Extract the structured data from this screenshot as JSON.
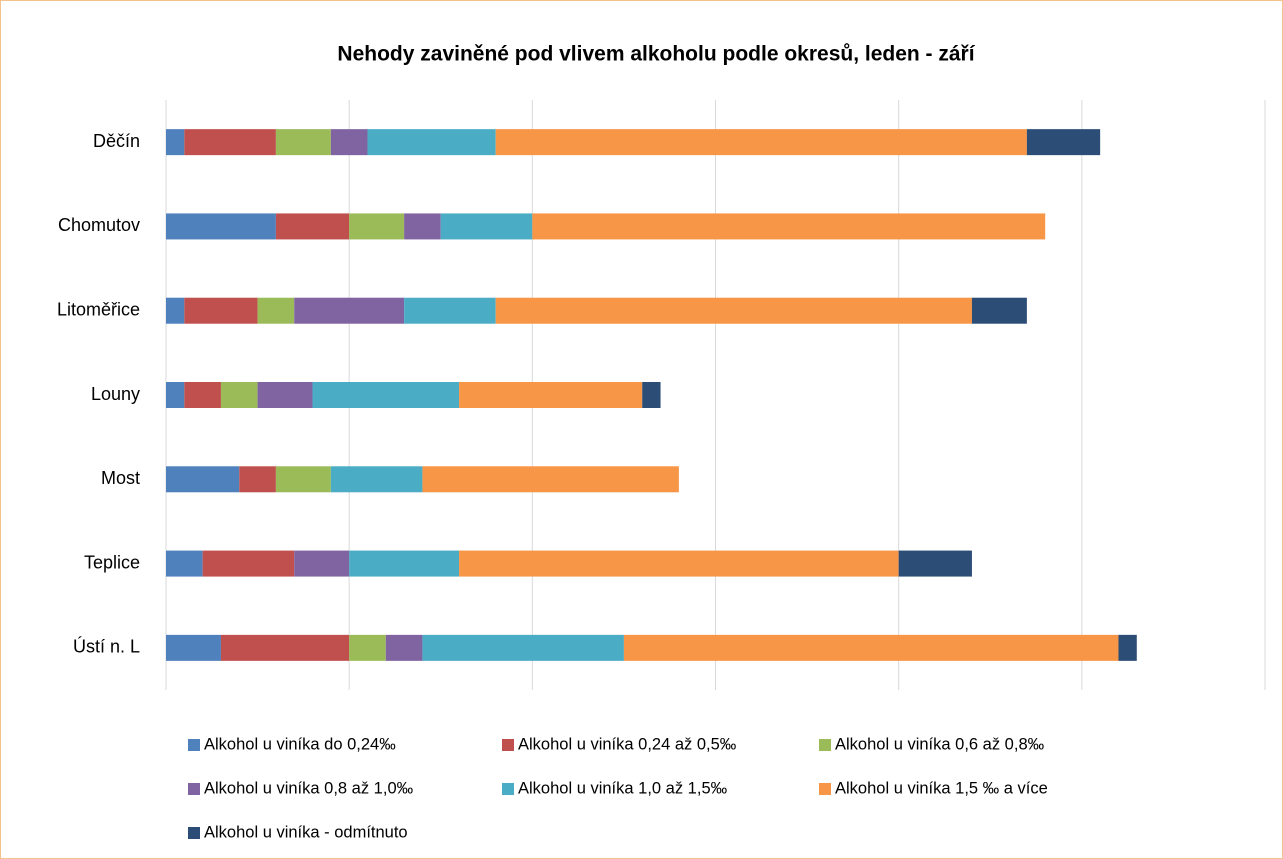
{
  "chart_data": {
    "type": "stacked_barh",
    "title": "Nehody zaviněné pod vlivem alkoholu  podle okresů, leden - září",
    "categories": [
      "Děčín",
      "Chomutov",
      "Litoměřice",
      "Louny",
      "Most",
      "Teplice",
      "Ústí n. L"
    ],
    "series": [
      {
        "name": "Alkohol u viníka do 0,24‰",
        "color": "#4f81bd",
        "values": [
          1,
          6,
          1,
          1,
          4,
          2,
          3
        ]
      },
      {
        "name": "Alkohol u viníka 0,24 až 0,5‰",
        "color": "#c0504d",
        "values": [
          5,
          4,
          4,
          2,
          2,
          5,
          7
        ]
      },
      {
        "name": "Alkohol u viníka 0,6 až 0,8‰",
        "color": "#9bbb59",
        "values": [
          3,
          3,
          2,
          2,
          3,
          0,
          2
        ]
      },
      {
        "name": "Alkohol u viníka 0,8 až 1,0‰",
        "color": "#8064a2",
        "values": [
          2,
          2,
          6,
          3,
          0,
          3,
          2
        ]
      },
      {
        "name": "Alkohol u viníka 1,0 až 1,5‰",
        "color": "#4bacc6",
        "values": [
          7,
          5,
          5,
          8,
          5,
          6,
          11
        ]
      },
      {
        "name": "Alkohol u viníka 1,5 ‰ a více",
        "color": "#f79646",
        "values": [
          29,
          28,
          26,
          10,
          14,
          24,
          27
        ]
      },
      {
        "name": "Alkohol u viníka - odmítnuto",
        "color": "#2c4d75",
        "values": [
          4,
          0,
          3,
          1,
          0,
          4,
          1
        ]
      }
    ],
    "xlim": [
      0,
      60
    ],
    "xticks": [
      0,
      10,
      20,
      30,
      40,
      50,
      60
    ],
    "grid": true
  }
}
